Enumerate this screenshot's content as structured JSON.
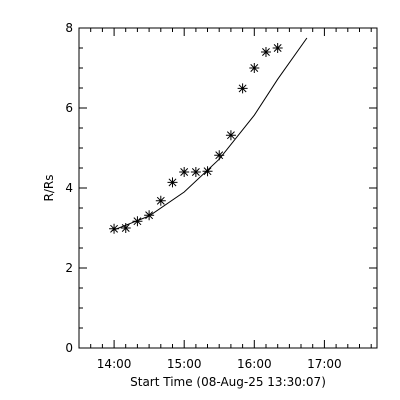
{
  "chart_data": {
    "type": "scatter",
    "xlabel": "Start Time (08-Aug-25 13:30:07)",
    "ylabel": "R/Rs",
    "x_ticks": [
      "14:00",
      "15:00",
      "16:00",
      "17:00"
    ],
    "y_ticks": [
      "0",
      "2",
      "4",
      "6",
      "8"
    ],
    "xlim": [
      "13:30",
      "17:45"
    ],
    "ylim": [
      0,
      8
    ],
    "grid": false,
    "marker": "asterisk",
    "points": [
      {
        "x": "14:00",
        "y": 2.98
      },
      {
        "x": "14:10",
        "y": 3.0
      },
      {
        "x": "14:20",
        "y": 3.17
      },
      {
        "x": "14:30",
        "y": 3.32
      },
      {
        "x": "14:40",
        "y": 3.68
      },
      {
        "x": "14:50",
        "y": 4.14
      },
      {
        "x": "15:00",
        "y": 4.4
      },
      {
        "x": "15:10",
        "y": 4.4
      },
      {
        "x": "15:20",
        "y": 4.42
      },
      {
        "x": "15:30",
        "y": 4.82
      },
      {
        "x": "15:40",
        "y": 5.32
      },
      {
        "x": "15:50",
        "y": 6.49
      },
      {
        "x": "16:00",
        "y": 7.0
      },
      {
        "x": "16:10",
        "y": 7.4
      },
      {
        "x": "16:20",
        "y": 7.5
      }
    ],
    "fit_curve": [
      {
        "x": "13:58",
        "y": 2.93
      },
      {
        "x": "14:30",
        "y": 3.3
      },
      {
        "x": "15:00",
        "y": 3.9
      },
      {
        "x": "15:30",
        "y": 4.72
      },
      {
        "x": "16:00",
        "y": 5.82
      },
      {
        "x": "16:20",
        "y": 6.72
      },
      {
        "x": "16:45",
        "y": 7.75
      }
    ],
    "colors": {
      "axis": "#000000",
      "marker": "#000000",
      "fit": "#000000",
      "background": "#ffffff"
    }
  }
}
